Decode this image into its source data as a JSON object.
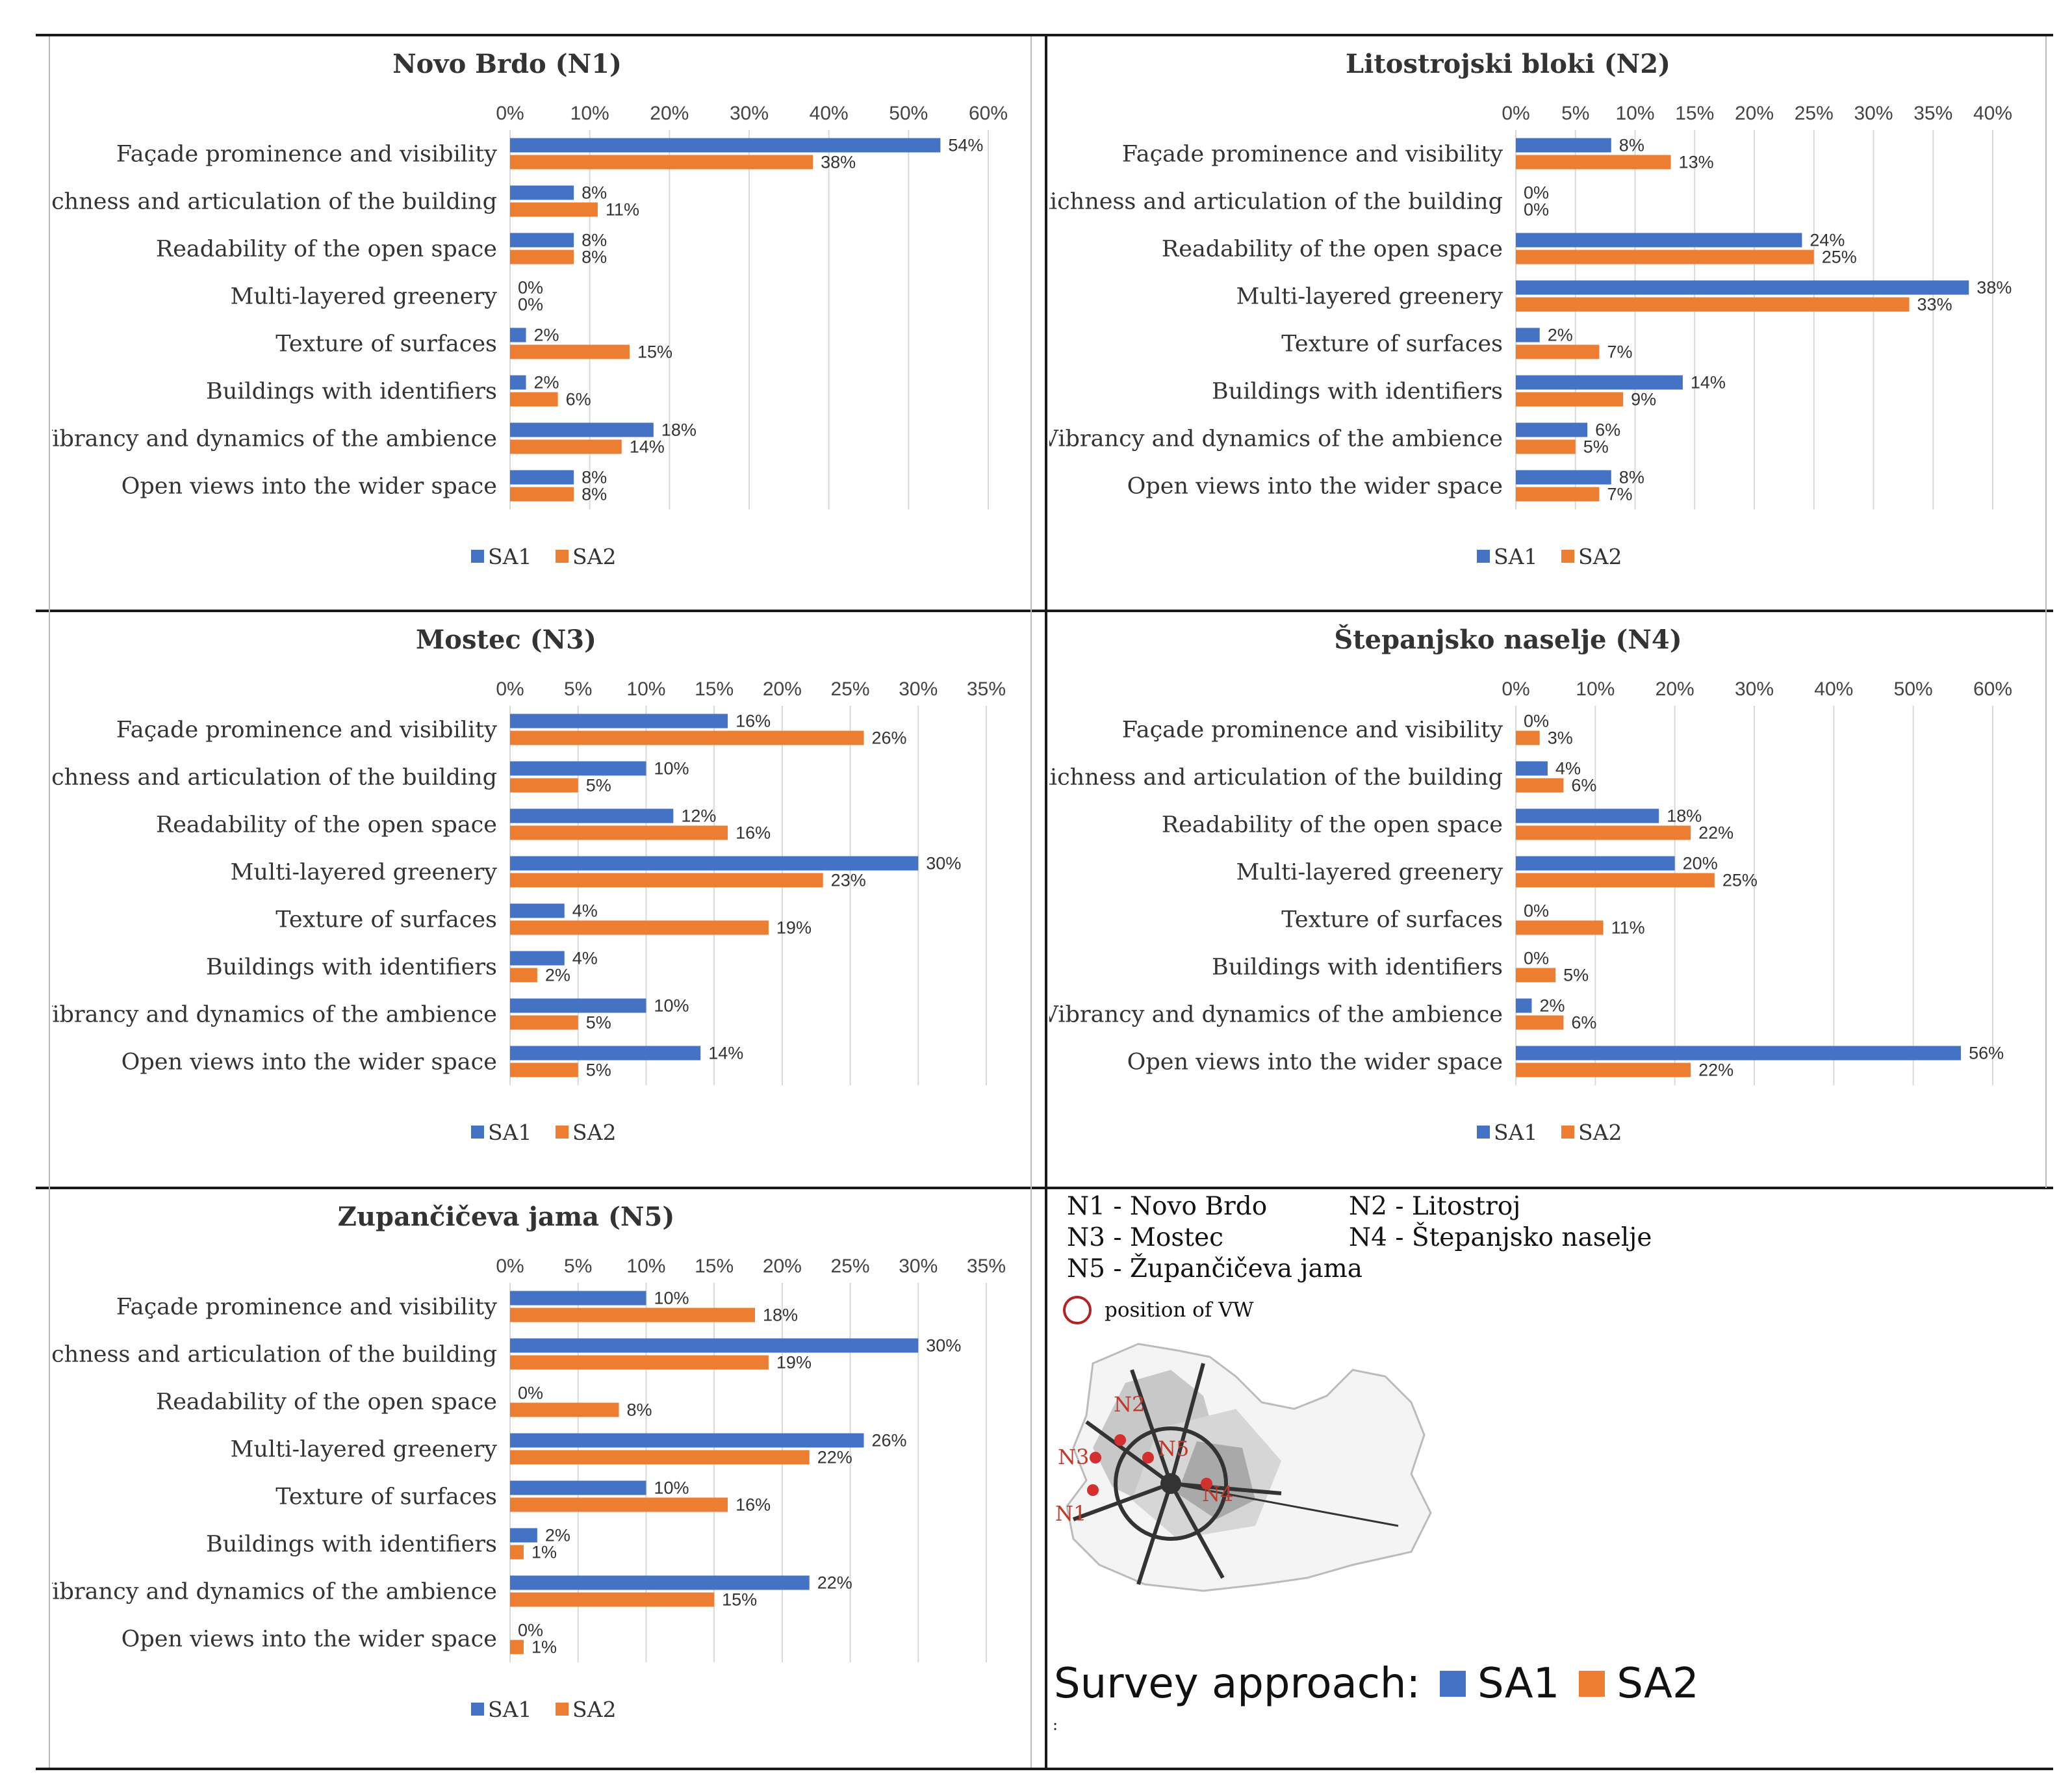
{
  "colors": {
    "SA1": "#4472C4",
    "SA2": "#ED7D31",
    "grid": "#d9d9d9",
    "vw": "#b22222"
  },
  "categories": [
    "Façade prominence and visibility",
    "Richness and articulation of the building",
    "Readability of the open space",
    "Multi-layered greenery",
    "Texture of surfaces",
    "Buildings with identifiers",
    "Vibrancy and dynamics of the ambience",
    "Open views into the wider space"
  ],
  "chart_data": [
    {
      "type": "bar",
      "orientation": "horizontal",
      "title": "Novo Brdo (N1)",
      "xlim": [
        0,
        60
      ],
      "ticks": [
        "0%",
        "10%",
        "20%",
        "30%",
        "40%",
        "50%",
        "60%"
      ],
      "series": [
        {
          "name": "SA1",
          "values": [
            54,
            8,
            8,
            0,
            2,
            2,
            18,
            8
          ]
        },
        {
          "name": "SA2",
          "values": [
            38,
            11,
            8,
            0,
            15,
            6,
            14,
            8
          ]
        }
      ],
      "legend": [
        "SA1",
        "SA2"
      ]
    },
    {
      "type": "bar",
      "orientation": "horizontal",
      "title": "Litostrojski bloki (N2)",
      "xlim": [
        0,
        40
      ],
      "ticks": [
        "0%",
        "5%",
        "10%",
        "15%",
        "20%",
        "25%",
        "30%",
        "35%",
        "40%"
      ],
      "series": [
        {
          "name": "SA1",
          "values": [
            8,
            0,
            24,
            38,
            2,
            14,
            6,
            8
          ]
        },
        {
          "name": "SA2",
          "values": [
            13,
            0,
            25,
            33,
            7,
            9,
            5,
            7
          ]
        }
      ],
      "legend": [
        "SA1",
        "SA2"
      ]
    },
    {
      "type": "bar",
      "orientation": "horizontal",
      "title": "Mostec (N3)",
      "xlim": [
        0,
        35
      ],
      "ticks": [
        "0%",
        "5%",
        "10%",
        "15%",
        "20%",
        "25%",
        "30%",
        "35%"
      ],
      "series": [
        {
          "name": "SA1",
          "values": [
            16,
            10,
            12,
            30,
            4,
            4,
            10,
            14
          ]
        },
        {
          "name": "SA2",
          "values": [
            26,
            5,
            16,
            23,
            19,
            2,
            5,
            5
          ]
        }
      ],
      "legend": [
        "SA1",
        "SA2"
      ]
    },
    {
      "type": "bar",
      "orientation": "horizontal",
      "title": "Štepanjsko naselje (N4)",
      "xlim": [
        0,
        60
      ],
      "ticks": [
        "0%",
        "10%",
        "20%",
        "30%",
        "40%",
        "50%",
        "60%"
      ],
      "series": [
        {
          "name": "SA1",
          "values": [
            0,
            4,
            18,
            20,
            0,
            0,
            2,
            56
          ]
        },
        {
          "name": "SA2",
          "values": [
            3,
            6,
            22,
            25,
            11,
            5,
            6,
            22
          ]
        }
      ],
      "legend": [
        "SA1",
        "SA2"
      ]
    },
    {
      "type": "bar",
      "orientation": "horizontal",
      "title": "Zupančičeva jama (N5)",
      "xlim": [
        0,
        35
      ],
      "ticks": [
        "0%",
        "5%",
        "10%",
        "15%",
        "20%",
        "25%",
        "30%",
        "35%"
      ],
      "series": [
        {
          "name": "SA1",
          "values": [
            10,
            30,
            0,
            26,
            10,
            2,
            22,
            0
          ]
        },
        {
          "name": "SA2",
          "values": [
            18,
            19,
            8,
            22,
            16,
            1,
            15,
            1
          ]
        }
      ],
      "legend": [
        "SA1",
        "SA2"
      ]
    }
  ],
  "key": {
    "n1": "N1 - Novo Brdo",
    "n2": "N2 - Litostroj",
    "n3": "N3 - Mostec",
    "n4": "N4 - Štepanjsko naselje",
    "n5": "N5 - Župančičeva jama",
    "vw": "position of VW"
  },
  "map_labels": [
    "N1",
    "N2",
    "N3",
    "N4",
    "N5"
  ],
  "survey": {
    "label": "Survey approach:",
    "sa1": "SA1",
    "sa2": "SA2",
    "note": ":"
  }
}
